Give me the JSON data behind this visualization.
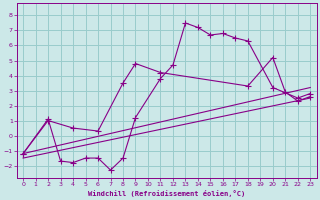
{
  "xlabel": "Windchill (Refroidissement éolien,°C)",
  "bg_color": "#cce8e8",
  "line_color": "#880088",
  "grid_color": "#99cccc",
  "xlim": [
    -0.5,
    23.5
  ],
  "ylim": [
    -2.8,
    8.8
  ],
  "yticks": [
    -2,
    -1,
    0,
    1,
    2,
    3,
    4,
    5,
    6,
    7,
    8
  ],
  "xticks": [
    0,
    1,
    2,
    3,
    4,
    5,
    6,
    7,
    8,
    9,
    10,
    11,
    12,
    13,
    14,
    15,
    16,
    17,
    18,
    19,
    20,
    21,
    22,
    23
  ],
  "line1_x": [
    0,
    2,
    3,
    4,
    5,
    6,
    7,
    8,
    9,
    11,
    12,
    13,
    14,
    15,
    16,
    17,
    18,
    20,
    22,
    23
  ],
  "line1_y": [
    -1.2,
    1.1,
    -1.7,
    -1.8,
    -1.5,
    -1.5,
    -2.3,
    -1.5,
    1.2,
    3.8,
    4.7,
    7.5,
    7.2,
    6.7,
    6.8,
    6.5,
    6.3,
    3.2,
    2.5,
    2.8
  ],
  "line2_x": [
    0,
    2,
    4,
    6,
    8,
    9,
    11,
    18,
    20,
    21,
    22,
    23
  ],
  "line2_y": [
    -1.2,
    1.0,
    0.5,
    0.3,
    3.5,
    4.8,
    4.2,
    3.3,
    5.2,
    2.9,
    2.3,
    2.6
  ],
  "line3_x": [
    0,
    23
  ],
  "line3_y": [
    -1.2,
    3.2
  ],
  "line4_x": [
    0,
    23
  ],
  "line4_y": [
    -1.5,
    2.5
  ]
}
